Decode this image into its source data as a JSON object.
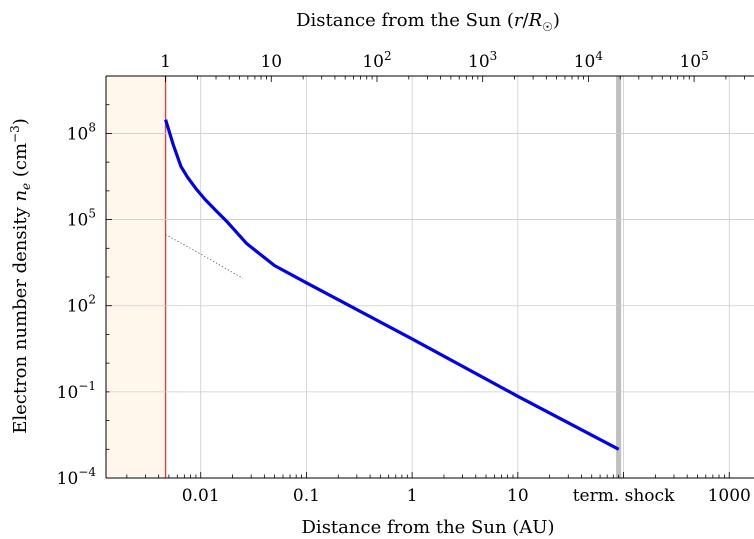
{
  "chart_data": {
    "type": "line",
    "title": "",
    "xlabel": "Distance from the Sun (AU)",
    "x2label": "Distance from the Sun (r/R☉)",
    "ylabel": "Electron number density n_e (cm⁻³)",
    "xscale": "log",
    "yscale": "log",
    "xlim": [
      0.00127,
      2430
    ],
    "ylim": [
      0.0001,
      10000000000
    ],
    "grid": true,
    "x_ticks": [
      {
        "value": 0.01,
        "label": "0.01"
      },
      {
        "value": 0.1,
        "label": "0.1"
      },
      {
        "value": 1,
        "label": "1"
      },
      {
        "value": 10,
        "label": "10"
      },
      {
        "value": 100,
        "label": "term. shock"
      },
      {
        "value": 1000,
        "label": "1000"
      }
    ],
    "x2_ticks": [
      {
        "value": 0.00465,
        "base": "1",
        "exp": ""
      },
      {
        "value": 0.0465,
        "base": "10",
        "exp": ""
      },
      {
        "value": 0.465,
        "base": "10",
        "exp": "2"
      },
      {
        "value": 4.65,
        "base": "10",
        "exp": "3"
      },
      {
        "value": 46.5,
        "base": "10",
        "exp": "4"
      },
      {
        "value": 465,
        "base": "10",
        "exp": "5"
      }
    ],
    "y_ticks": [
      {
        "value": 0.0001,
        "base": "10",
        "exp": "−4"
      },
      {
        "value": 0.1,
        "base": "10",
        "exp": "−1"
      },
      {
        "value": 100,
        "base": "10",
        "exp": "2"
      },
      {
        "value": 100000,
        "base": "10",
        "exp": "5"
      },
      {
        "value": 100000000,
        "base": "10",
        "exp": "8"
      }
    ],
    "sun_surface_au": 0.00465,
    "termination_shock_au": [
      85,
      95
    ],
    "series": [
      {
        "color": "#0000ee",
        "x": [
          0.00465,
          0.0055,
          0.0065,
          0.0075,
          0.009,
          0.011,
          0.014,
          0.018,
          0.022,
          0.027,
          0.035,
          0.05,
          0.1,
          1,
          10,
          90
        ],
        "y": [
          300000000,
          40000000,
          7000000,
          3000000,
          1200000,
          500000,
          200000,
          80000,
          35000,
          15000,
          7000,
          2500,
          630,
          7,
          0.07,
          0.001
        ]
      },
      {
        "style": "dotted",
        "color": "#555555",
        "x": [
          0.00465,
          0.008,
          0.012,
          0.018,
          0.025
        ],
        "y": [
          30000,
          10000,
          4300,
          1800,
          900
        ]
      }
    ]
  }
}
